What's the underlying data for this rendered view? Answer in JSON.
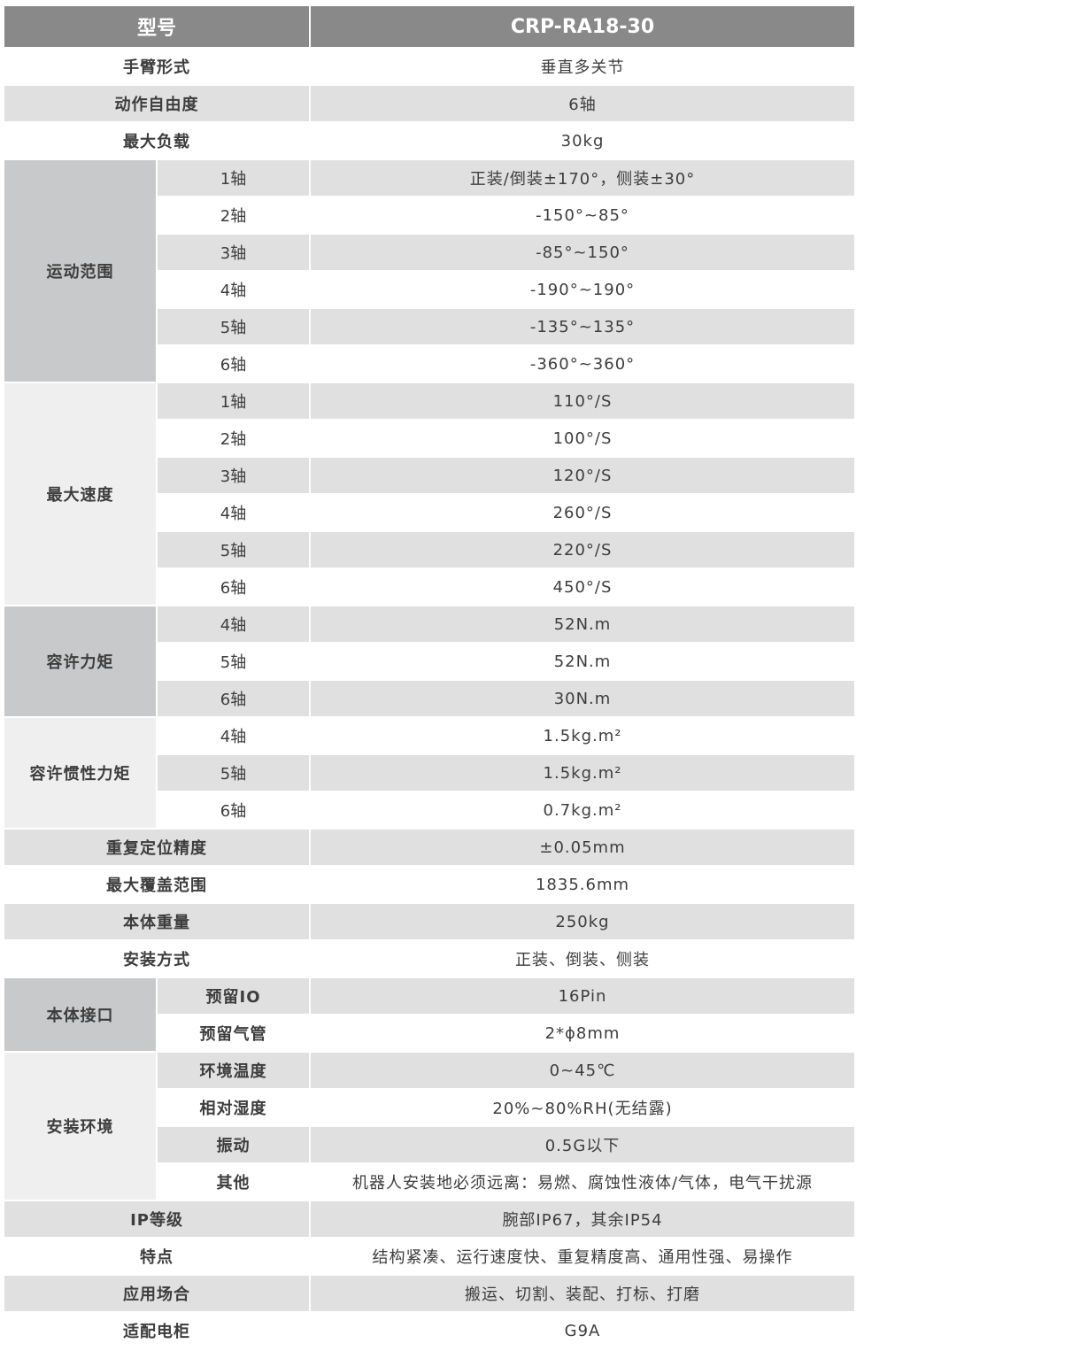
{
  "header": {
    "label": "型号",
    "value": "CRP-RA18-30"
  },
  "colors": {
    "header_bg": "#898989",
    "stripe": "#dfe0df",
    "group_dark": "#c8c9ca",
    "group_light": "#efefef"
  },
  "rows": [
    {
      "label": "手臂形式",
      "value": "垂直多关节"
    },
    {
      "label": "动作自由度",
      "value": "6轴"
    },
    {
      "label": "最大负载",
      "value": "30kg"
    },
    {
      "label": "运动范围",
      "shade": "dark",
      "sub": [
        {
          "label": "1轴",
          "value": "正装/倒装±170°，侧装±30°"
        },
        {
          "label": "2轴",
          "value": "-150°~85°"
        },
        {
          "label": "3轴",
          "value": "-85°~150°"
        },
        {
          "label": "4轴",
          "value": "-190°~190°"
        },
        {
          "label": "5轴",
          "value": "-135°~135°"
        },
        {
          "label": "6轴",
          "value": "-360°~360°"
        }
      ]
    },
    {
      "label": "最大速度",
      "shade": "light",
      "sub": [
        {
          "label": "1轴",
          "value": "110°/S"
        },
        {
          "label": "2轴",
          "value": "100°/S"
        },
        {
          "label": "3轴",
          "value": "120°/S"
        },
        {
          "label": "4轴",
          "value": "260°/S"
        },
        {
          "label": "5轴",
          "value": "220°/S"
        },
        {
          "label": "6轴",
          "value": "450°/S"
        }
      ]
    },
    {
      "label": "容许力矩",
      "shade": "dark",
      "sub": [
        {
          "label": "4轴",
          "value": "52N.m"
        },
        {
          "label": "5轴",
          "value": "52N.m"
        },
        {
          "label": "6轴",
          "value": "30N.m"
        }
      ]
    },
    {
      "label": "容许惯性力矩",
      "shade": "light",
      "sub": [
        {
          "label": "4轴",
          "value": "1.5kg.m²"
        },
        {
          "label": "5轴",
          "value": "1.5kg.m²"
        },
        {
          "label": "6轴",
          "value": "0.7kg.m²"
        }
      ]
    },
    {
      "label": "重复定位精度",
      "value": "±0.05mm"
    },
    {
      "label": "最大覆盖范围",
      "value": "1835.6mm"
    },
    {
      "label": "本体重量",
      "value": "250kg"
    },
    {
      "label": "安装方式",
      "value": "正装、倒装、侧装"
    },
    {
      "label": "本体接口",
      "shade": "dark",
      "boldsub": true,
      "sub": [
        {
          "label": "预留IO",
          "value": "16Pin"
        },
        {
          "label": "预留气管",
          "value": "2*ϕ8mm"
        }
      ]
    },
    {
      "label": "安装环境",
      "shade": "light",
      "boldsub": true,
      "sub": [
        {
          "label": "环境温度",
          "value": "0~45℃"
        },
        {
          "label": "相对湿度",
          "value": "20%~80%RH(无结露)"
        },
        {
          "label": "振动",
          "value": "0.5G以下"
        },
        {
          "label": "其他",
          "value": "机器人安装地必须远离：易燃、腐蚀性液体/气体，电气干扰源"
        }
      ]
    },
    {
      "label": "IP等级",
      "value": "腕部IP67，其余IP54"
    },
    {
      "label": "特点",
      "value": "结构紧凑、运行速度快、重复精度高、通用性强、易操作"
    },
    {
      "label": "应用场合",
      "value": "搬运、切割、装配、打标、打磨"
    },
    {
      "label": "适配电柜",
      "value": "G9A"
    }
  ]
}
